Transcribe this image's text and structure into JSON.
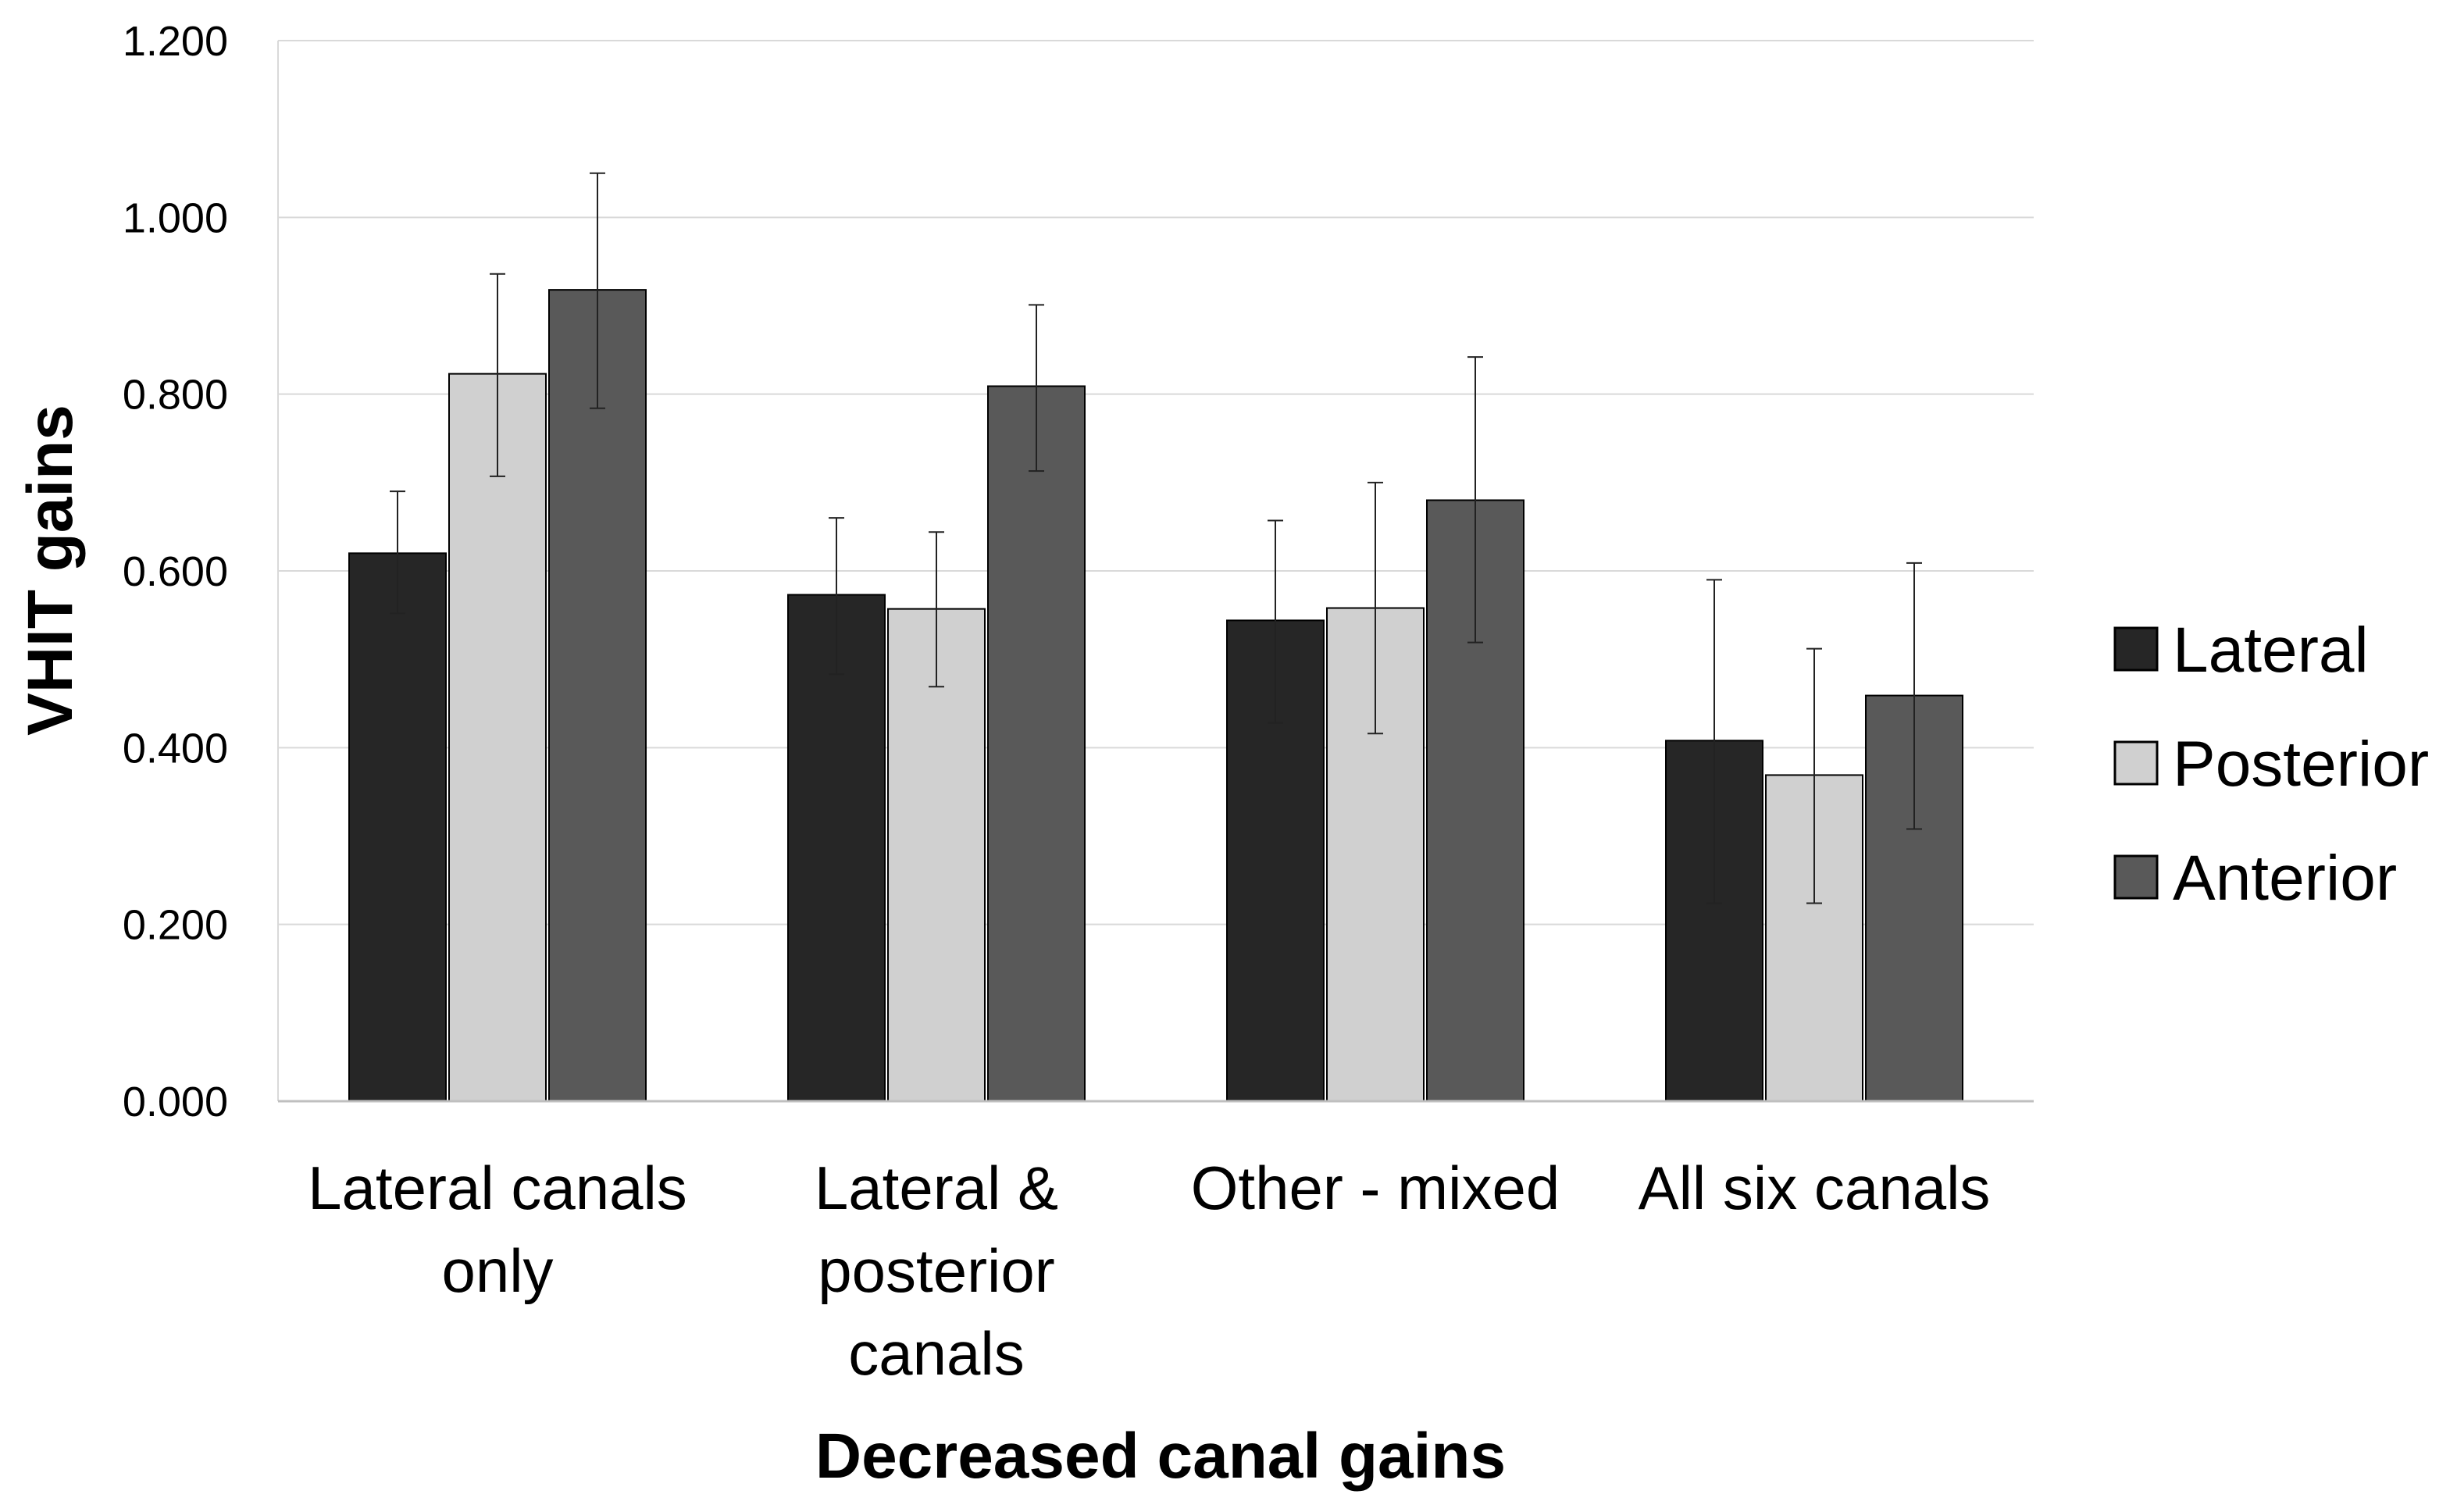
{
  "chart_data": {
    "type": "bar",
    "title": "",
    "xlabel": "Decreased canal gains",
    "ylabel": "VHIT gains",
    "ylim": [
      0,
      1.2
    ],
    "yticks": [
      "0.000",
      "0.200",
      "0.400",
      "0.600",
      "0.800",
      "1.000",
      "1.200"
    ],
    "grid": true,
    "legend_position": "right",
    "categories": [
      [
        "Lateral canals",
        "only"
      ],
      [
        "Lateral &",
        "posterior",
        "canals"
      ],
      [
        "Other - mixed"
      ],
      [
        "All six canals"
      ]
    ],
    "series": [
      {
        "name": "Lateral",
        "color": "#262626",
        "values": [
          0.62,
          0.573,
          0.544,
          0.408
        ],
        "error_low": [
          0.552,
          0.483,
          0.428,
          0.224
        ],
        "error_high": [
          0.69,
          0.66,
          0.657,
          0.59
        ]
      },
      {
        "name": "Posterior",
        "color": "#d0d0d0",
        "values": [
          0.823,
          0.557,
          0.558,
          0.369
        ],
        "error_low": [
          0.707,
          0.469,
          0.416,
          0.224
        ],
        "error_high": [
          0.936,
          0.644,
          0.7,
          0.512
        ]
      },
      {
        "name": "Anterior",
        "color": "#595959",
        "values": [
          0.918,
          0.809,
          0.68,
          0.459
        ],
        "error_low": [
          0.784,
          0.713,
          0.519,
          0.308
        ],
        "error_high": [
          1.05,
          0.901,
          0.842,
          0.609
        ]
      }
    ]
  }
}
